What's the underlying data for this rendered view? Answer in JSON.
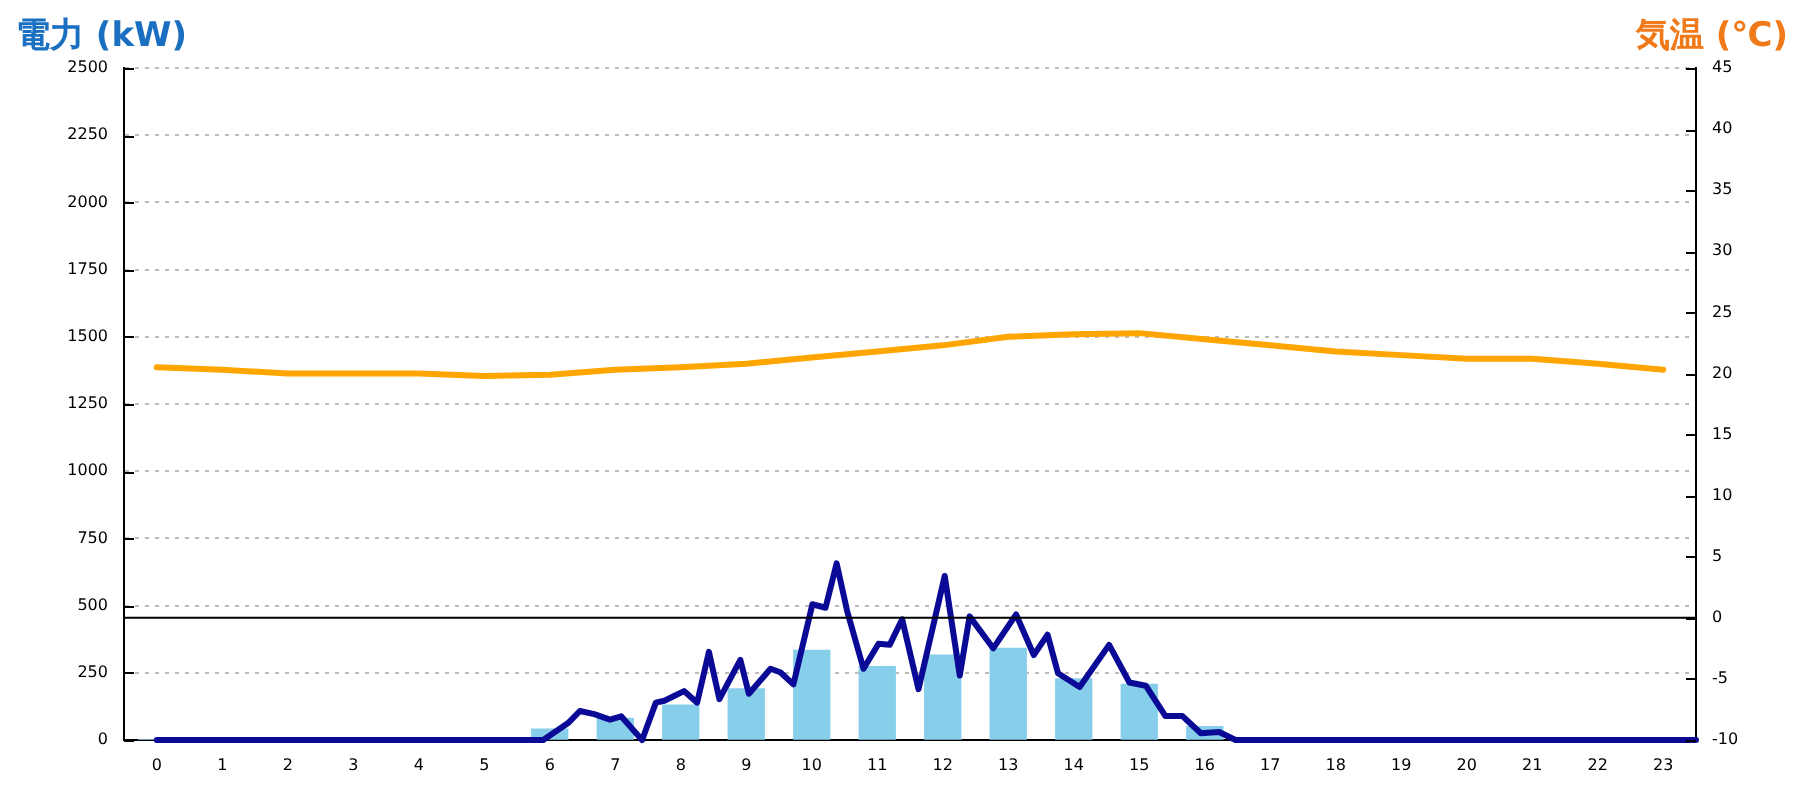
{
  "chart_data": {
    "type": "bar",
    "ylabel": "電力 (kW)",
    "y2label": "気温 (℃)",
    "xlim": [
      -0.5,
      23.5
    ],
    "xticks": [
      0,
      1,
      2,
      3,
      4,
      5,
      6,
      7,
      8,
      9,
      10,
      11,
      12,
      13,
      14,
      15,
      16,
      17,
      18,
      19,
      20,
      21,
      22,
      23
    ],
    "ylim": [
      0,
      2500
    ],
    "yticks": [
      0,
      250,
      500,
      750,
      1000,
      1250,
      1500,
      1750,
      2000,
      2250,
      2500
    ],
    "y2lim": [
      -10,
      45
    ],
    "y2ticks": [
      -10,
      -5,
      0,
      5,
      10,
      15,
      20,
      25,
      30,
      35,
      40,
      45
    ],
    "grid": "y",
    "legend": false,
    "ref_lines": [
      {
        "axis": "y2",
        "value": 0,
        "color": "#000000"
      }
    ],
    "series": [
      {
        "color": "#87ceeb",
        "x": [
          0,
          1,
          2,
          3,
          4,
          5,
          6,
          7,
          8,
          9,
          10,
          11,
          12,
          13,
          14,
          15,
          16,
          17,
          18,
          19,
          20,
          21,
          22,
          23
        ],
        "values": [
          0,
          0,
          0,
          0,
          0,
          0,
          40,
          80,
          130,
          190,
          333,
          273,
          316,
          341,
          227,
          207,
          50,
          0,
          0,
          0,
          0,
          0,
          0,
          0
        ]
      },
      {
        "type": "line",
        "color": "#0a0a96",
        "x": [
          0,
          5.9,
          6.28,
          6.46,
          6.68,
          6.92,
          7.09,
          7.41,
          7.62,
          7.75,
          8.05,
          8.25,
          8.43,
          8.59,
          8.91,
          9.04,
          9.37,
          9.52,
          9.72,
          10.01,
          10.21,
          10.38,
          10.54,
          10.79,
          11.02,
          11.19,
          11.38,
          11.63,
          12.03,
          12.26,
          12.41,
          12.77,
          13.12,
          13.39,
          13.6,
          13.76,
          14.09,
          14.54,
          14.85,
          15.1,
          15.4,
          15.66,
          15.94,
          16.22,
          16.47,
          23.5
        ],
        "values": [
          0,
          0,
          63,
          108,
          96,
          76,
          88,
          0,
          139,
          146,
          182,
          139,
          328,
          152,
          298,
          172,
          265,
          252,
          207,
          505,
          492,
          657,
          480,
          265,
          358,
          354,
          449,
          189,
          610,
          240,
          460,
          341,
          467,
          316,
          392,
          248,
          197,
          354,
          214,
          202,
          89,
          89,
          25,
          30,
          0,
          0
        ]
      },
      {
        "type": "line",
        "axis": "y2",
        "color": "#ffa500",
        "x": [
          0,
          1,
          2,
          3,
          4,
          5,
          6,
          7,
          8,
          9,
          10,
          11,
          12,
          13,
          14,
          15,
          16,
          17,
          18,
          19,
          20,
          21,
          22,
          23
        ],
        "values": [
          20.5,
          20.3,
          20.0,
          20.0,
          20.0,
          19.8,
          19.9,
          20.3,
          20.5,
          20.8,
          21.3,
          21.8,
          22.3,
          23.0,
          23.2,
          23.3,
          22.8,
          22.3,
          21.8,
          21.5,
          21.2,
          21.2,
          20.8,
          20.3
        ]
      }
    ]
  }
}
